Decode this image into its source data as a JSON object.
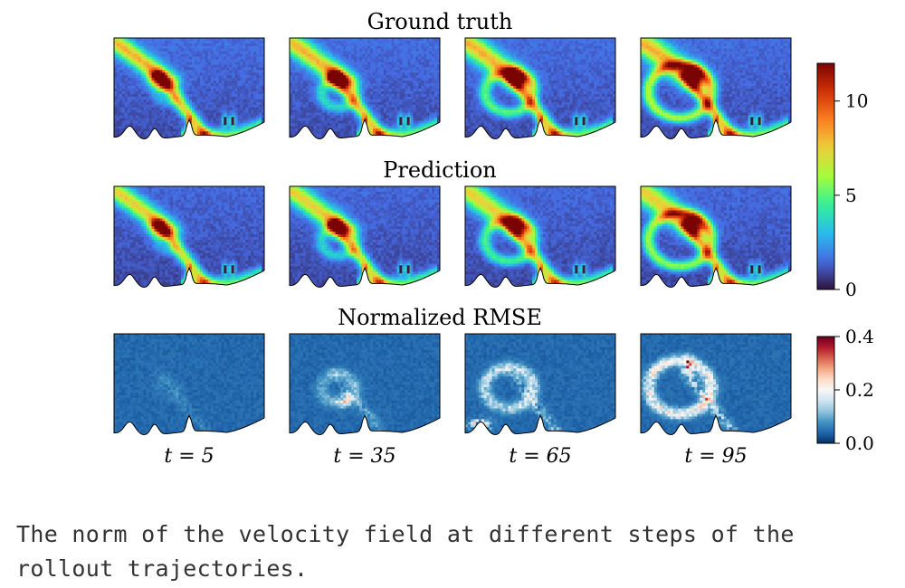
{
  "chart_data": {
    "type": "heatmap",
    "rows": [
      {
        "title": "Ground truth",
        "colormap": "turbo",
        "colorbar": "velocity"
      },
      {
        "title": "Prediction",
        "colormap": "turbo",
        "colorbar": "velocity"
      },
      {
        "title": "Normalized RMSE",
        "colormap": "RdBu_r",
        "colorbar": "error"
      }
    ],
    "columns": [
      {
        "label": "t = 5",
        "t": 5
      },
      {
        "label": "t = 35",
        "t": 35
      },
      {
        "label": "t = 65",
        "t": 65
      },
      {
        "label": "t = 95",
        "t": 95
      }
    ],
    "colorbars": {
      "velocity": {
        "range": [
          0,
          12
        ],
        "ticks": [
          0,
          5,
          10
        ],
        "tick_labels": [
          "0",
          "5",
          "10"
        ]
      },
      "error": {
        "range": [
          0.0,
          0.4
        ],
        "ticks": [
          0.0,
          0.2,
          0.4
        ],
        "tick_labels": [
          "0.0",
          "0.2",
          "0.4"
        ]
      }
    },
    "field_peak": {
      "velocity": 11,
      "error": 0.38
    }
  },
  "caption": "The norm of the velocity field at different steps of the rollout trajectories."
}
